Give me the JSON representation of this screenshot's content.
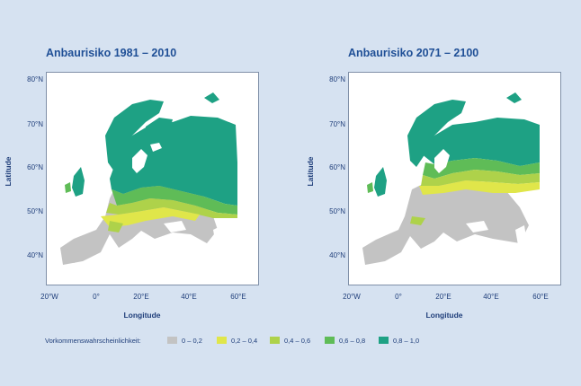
{
  "maps": [
    {
      "title": "Anbaurisiko 1981 – 2010"
    },
    {
      "title": "Anbaurisiko 2071 – 2100"
    }
  ],
  "axes": {
    "y_label": "Latitude",
    "x_label": "Longitude",
    "lat_ticks": [
      "80°N",
      "70°N",
      "60°N",
      "50°N",
      "40°N"
    ],
    "lon_ticks": [
      "20°W",
      "0°",
      "20°E",
      "40°E",
      "60°E"
    ]
  },
  "legend": {
    "title": "Vorkommenswahrscheinlichkeit:",
    "items": [
      {
        "label": "0 – 0,2",
        "color": "#c3c3c3"
      },
      {
        "label": "0,2 – 0,4",
        "color": "#e0e64a"
      },
      {
        "label": "0,4 – 0,6",
        "color": "#aed24a"
      },
      {
        "label": "0,6 – 0,8",
        "color": "#5fbc57"
      },
      {
        "label": "0,8 – 1,0",
        "color": "#1ea184"
      }
    ]
  },
  "colors": {
    "background": "#d6e2f1",
    "title": "#1f4f96",
    "sea": "#ffffff"
  }
}
